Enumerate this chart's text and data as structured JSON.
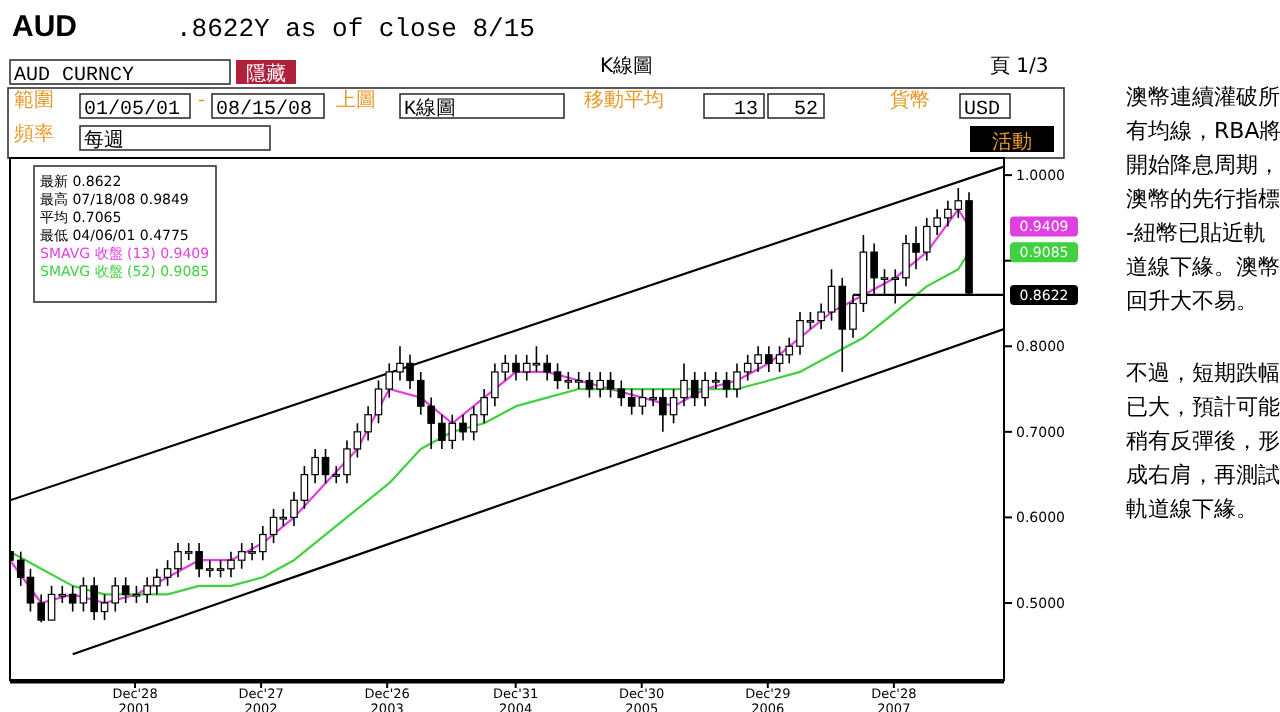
{
  "chart_data": {
    "type": "candlestick",
    "title": "AUD",
    "subtitle": ".8622Y as of close 8/15",
    "color": "#000000",
    "x": [
      "2001-01",
      "2001-02",
      "2001-03",
      "2001-04",
      "2001-05",
      "2001-06",
      "2001-07",
      "2001-08",
      "2001-09",
      "2001-10",
      "2001-11",
      "2001-12",
      "2002-01",
      "2002-02",
      "2002-03",
      "2002-04",
      "2002-05",
      "2002-06",
      "2002-07",
      "2002-08",
      "2002-09",
      "2002-10",
      "2002-11",
      "2002-12",
      "2003-01",
      "2003-02",
      "2003-03",
      "2003-04",
      "2003-05",
      "2003-06",
      "2003-07",
      "2003-08",
      "2003-09",
      "2003-10",
      "2003-11",
      "2003-12",
      "2004-01",
      "2004-02",
      "2004-03",
      "2004-04",
      "2004-05",
      "2004-06",
      "2004-07",
      "2004-08",
      "2004-09",
      "2004-10",
      "2004-11",
      "2004-12",
      "2005-01",
      "2005-02",
      "2005-03",
      "2005-04",
      "2005-05",
      "2005-06",
      "2005-07",
      "2005-08",
      "2005-09",
      "2005-10",
      "2005-11",
      "2005-12",
      "2006-01",
      "2006-02",
      "2006-03",
      "2006-04",
      "2006-05",
      "2006-06",
      "2006-07",
      "2006-08",
      "2006-09",
      "2006-10",
      "2006-11",
      "2006-12",
      "2007-01",
      "2007-02",
      "2007-03",
      "2007-04",
      "2007-05",
      "2007-06",
      "2007-07",
      "2007-08",
      "2007-09",
      "2007-10",
      "2007-11",
      "2007-12",
      "2008-01",
      "2008-02",
      "2008-03",
      "2008-04",
      "2008-05",
      "2008-06",
      "2008-07",
      "2008-08"
    ],
    "ohlc": [
      [
        0.56,
        0.57,
        0.54,
        0.55
      ],
      [
        0.55,
        0.56,
        0.52,
        0.53
      ],
      [
        0.53,
        0.54,
        0.49,
        0.5
      ],
      [
        0.5,
        0.51,
        0.4775,
        0.48
      ],
      [
        0.48,
        0.52,
        0.48,
        0.51
      ],
      [
        0.51,
        0.52,
        0.5,
        0.51
      ],
      [
        0.51,
        0.52,
        0.49,
        0.5
      ],
      [
        0.5,
        0.53,
        0.49,
        0.52
      ],
      [
        0.52,
        0.53,
        0.48,
        0.49
      ],
      [
        0.49,
        0.51,
        0.48,
        0.5
      ],
      [
        0.5,
        0.53,
        0.49,
        0.52
      ],
      [
        0.52,
        0.53,
        0.5,
        0.51
      ],
      [
        0.51,
        0.52,
        0.5,
        0.51
      ],
      [
        0.51,
        0.53,
        0.5,
        0.52
      ],
      [
        0.52,
        0.54,
        0.51,
        0.53
      ],
      [
        0.53,
        0.55,
        0.52,
        0.54
      ],
      [
        0.54,
        0.57,
        0.53,
        0.56
      ],
      [
        0.56,
        0.57,
        0.55,
        0.56
      ],
      [
        0.56,
        0.57,
        0.53,
        0.54
      ],
      [
        0.54,
        0.55,
        0.53,
        0.54
      ],
      [
        0.54,
        0.55,
        0.53,
        0.54
      ],
      [
        0.54,
        0.56,
        0.53,
        0.55
      ],
      [
        0.55,
        0.57,
        0.54,
        0.56
      ],
      [
        0.56,
        0.57,
        0.55,
        0.56
      ],
      [
        0.56,
        0.59,
        0.55,
        0.58
      ],
      [
        0.58,
        0.61,
        0.57,
        0.6
      ],
      [
        0.6,
        0.61,
        0.59,
        0.6
      ],
      [
        0.6,
        0.63,
        0.59,
        0.62
      ],
      [
        0.62,
        0.66,
        0.61,
        0.65
      ],
      [
        0.65,
        0.68,
        0.64,
        0.67
      ],
      [
        0.67,
        0.68,
        0.64,
        0.65
      ],
      [
        0.65,
        0.66,
        0.64,
        0.65
      ],
      [
        0.65,
        0.69,
        0.64,
        0.68
      ],
      [
        0.68,
        0.71,
        0.67,
        0.7
      ],
      [
        0.7,
        0.73,
        0.69,
        0.72
      ],
      [
        0.72,
        0.76,
        0.71,
        0.75
      ],
      [
        0.75,
        0.78,
        0.74,
        0.77
      ],
      [
        0.77,
        0.8,
        0.76,
        0.78
      ],
      [
        0.78,
        0.79,
        0.75,
        0.76
      ],
      [
        0.76,
        0.77,
        0.72,
        0.73
      ],
      [
        0.73,
        0.74,
        0.68,
        0.71
      ],
      [
        0.71,
        0.72,
        0.68,
        0.69
      ],
      [
        0.69,
        0.72,
        0.68,
        0.71
      ],
      [
        0.71,
        0.72,
        0.69,
        0.7
      ],
      [
        0.7,
        0.73,
        0.69,
        0.72
      ],
      [
        0.72,
        0.75,
        0.71,
        0.74
      ],
      [
        0.74,
        0.78,
        0.73,
        0.77
      ],
      [
        0.77,
        0.79,
        0.76,
        0.78
      ],
      [
        0.78,
        0.79,
        0.76,
        0.77
      ],
      [
        0.77,
        0.79,
        0.76,
        0.78
      ],
      [
        0.78,
        0.8,
        0.77,
        0.78
      ],
      [
        0.78,
        0.79,
        0.76,
        0.77
      ],
      [
        0.77,
        0.78,
        0.75,
        0.76
      ],
      [
        0.76,
        0.77,
        0.75,
        0.76
      ],
      [
        0.76,
        0.77,
        0.75,
        0.76
      ],
      [
        0.76,
        0.77,
        0.74,
        0.75
      ],
      [
        0.75,
        0.77,
        0.74,
        0.76
      ],
      [
        0.76,
        0.77,
        0.74,
        0.75
      ],
      [
        0.75,
        0.76,
        0.73,
        0.74
      ],
      [
        0.74,
        0.75,
        0.72,
        0.73
      ],
      [
        0.73,
        0.75,
        0.72,
        0.74
      ],
      [
        0.74,
        0.75,
        0.73,
        0.74
      ],
      [
        0.74,
        0.75,
        0.7,
        0.72
      ],
      [
        0.72,
        0.75,
        0.71,
        0.74
      ],
      [
        0.74,
        0.78,
        0.73,
        0.76
      ],
      [
        0.76,
        0.77,
        0.73,
        0.74
      ],
      [
        0.74,
        0.77,
        0.73,
        0.76
      ],
      [
        0.76,
        0.77,
        0.75,
        0.76
      ],
      [
        0.76,
        0.77,
        0.74,
        0.75
      ],
      [
        0.75,
        0.78,
        0.74,
        0.77
      ],
      [
        0.77,
        0.79,
        0.76,
        0.78
      ],
      [
        0.78,
        0.8,
        0.77,
        0.79
      ],
      [
        0.79,
        0.8,
        0.77,
        0.78
      ],
      [
        0.78,
        0.8,
        0.77,
        0.79
      ],
      [
        0.79,
        0.81,
        0.78,
        0.8
      ],
      [
        0.8,
        0.84,
        0.79,
        0.83
      ],
      [
        0.83,
        0.84,
        0.82,
        0.83
      ],
      [
        0.83,
        0.85,
        0.82,
        0.84
      ],
      [
        0.84,
        0.89,
        0.83,
        0.87
      ],
      [
        0.87,
        0.88,
        0.77,
        0.82
      ],
      [
        0.82,
        0.86,
        0.81,
        0.85
      ],
      [
        0.85,
        0.93,
        0.84,
        0.91
      ],
      [
        0.91,
        0.92,
        0.86,
        0.88
      ],
      [
        0.88,
        0.89,
        0.86,
        0.88
      ],
      [
        0.88,
        0.89,
        0.85,
        0.88
      ],
      [
        0.88,
        0.93,
        0.87,
        0.92
      ],
      [
        0.92,
        0.94,
        0.89,
        0.91
      ],
      [
        0.91,
        0.95,
        0.9,
        0.94
      ],
      [
        0.94,
        0.96,
        0.93,
        0.95
      ],
      [
        0.95,
        0.97,
        0.94,
        0.96
      ],
      [
        0.96,
        0.9849,
        0.95,
        0.97
      ],
      [
        0.97,
        0.98,
        0.86,
        0.8622
      ]
    ],
    "series": [
      {
        "type": "line",
        "name": "SMAVG 收盤 (13) 0.9409",
        "color": "#e040e0",
        "x": [
          "2001-01",
          "2001-04",
          "2001-07",
          "2001-10",
          "2002-01",
          "2002-04",
          "2002-07",
          "2002-10",
          "2003-01",
          "2003-04",
          "2003-07",
          "2003-10",
          "2004-01",
          "2004-04",
          "2004-07",
          "2004-10",
          "2005-01",
          "2005-04",
          "2005-07",
          "2005-10",
          "2006-01",
          "2006-04",
          "2006-07",
          "2006-10",
          "2007-01",
          "2007-04",
          "2007-07",
          "2007-10",
          "2008-01",
          "2008-04",
          "2008-07",
          "2008-08"
        ],
        "values": [
          0.55,
          0.5,
          0.51,
          0.5,
          0.51,
          0.53,
          0.55,
          0.55,
          0.57,
          0.6,
          0.64,
          0.68,
          0.75,
          0.74,
          0.71,
          0.74,
          0.77,
          0.77,
          0.76,
          0.75,
          0.74,
          0.73,
          0.75,
          0.76,
          0.78,
          0.81,
          0.84,
          0.86,
          0.88,
          0.91,
          0.96,
          0.94
        ]
      },
      {
        "type": "line",
        "name": "SMAVG 收盤 (52) 0.9085",
        "color": "#40d040",
        "x": [
          "2001-01",
          "2001-04",
          "2001-07",
          "2001-10",
          "2002-01",
          "2002-04",
          "2002-07",
          "2002-10",
          "2003-01",
          "2003-04",
          "2003-07",
          "2003-10",
          "2004-01",
          "2004-04",
          "2004-07",
          "2004-10",
          "2005-01",
          "2005-04",
          "2005-07",
          "2005-10",
          "2006-01",
          "2006-04",
          "2006-07",
          "2006-10",
          "2007-01",
          "2007-04",
          "2007-07",
          "2007-10",
          "2008-01",
          "2008-04",
          "2008-07",
          "2008-08"
        ],
        "values": [
          0.56,
          0.54,
          0.52,
          0.51,
          0.51,
          0.51,
          0.52,
          0.52,
          0.53,
          0.55,
          0.58,
          0.61,
          0.64,
          0.68,
          0.7,
          0.71,
          0.73,
          0.74,
          0.75,
          0.75,
          0.75,
          0.75,
          0.75,
          0.75,
          0.76,
          0.77,
          0.79,
          0.81,
          0.84,
          0.87,
          0.89,
          0.91
        ]
      },
      {
        "type": "line",
        "color": "#000000",
        "x": [
          "2001-01-01",
          "2008-11-10"
        ],
        "values": [
          0.62,
          1.01
        ]
      },
      {
        "type": "line",
        "color": "#000000",
        "x": [
          "2001-07-01",
          "2008-11-10"
        ],
        "values": [
          0.44,
          0.82
        ]
      },
      {
        "type": "line",
        "color": "#000000",
        "x": [
          "2007-09-01",
          "2008-11-10"
        ],
        "values": [
          0.86,
          0.86
        ]
      }
    ],
    "xlim": [
      "2001-01-01",
      "2008-11-10"
    ],
    "xticks": [
      {
        "value": "2001-12-28",
        "label": "Dec'28 2001"
      },
      {
        "value": "2002-12-27",
        "label": "Dec'27 2002"
      },
      {
        "value": "2003-12-26",
        "label": "Dec'26 2003"
      },
      {
        "value": "2004-12-31",
        "label": "Dec'31 2004"
      },
      {
        "value": "2005-12-30",
        "label": "Dec'30 2005"
      },
      {
        "value": "2006-12-29",
        "label": "Dec'29 2006"
      },
      {
        "value": "2007-12-28",
        "label": "Dec'28 2007"
      }
    ],
    "ylim": [
      0.41,
      1.02
    ],
    "yticks": [
      {
        "value": 0.5,
        "label": "0.5000"
      },
      {
        "value": 0.6,
        "label": "0.6000"
      },
      {
        "value": 0.7,
        "label": "0.7000"
      },
      {
        "value": 0.8,
        "label": "0.8000"
      },
      {
        "value": 0.9,
        "label": null
      },
      {
        "value": 1.0,
        "label": "1.0000"
      }
    ],
    "grid": false,
    "legend": "top left",
    "annotations": [
      "AUD CURNCY",
      "隱藏",
      "K線圖",
      "頁 1/3",
      "範圍",
      "01/05/01",
      "-",
      "08/15/08",
      "上圖",
      "K線圖",
      "移動平均",
      "13",
      "52",
      "貨幣",
      "USD",
      "頻率",
      "每週",
      "活動",
      "最新 0.8622",
      "最高 07/18/08 0.9849",
      "平均 0.7065",
      "最低 04/06/01 0.4775",
      "澳幣連續灌破所有均線，RBA將開始降息周期，澳幣的先行指標-紐幣已貼近軌道線下緣。澳幣回升大不易。",
      "不過，短期跌幅已大，預計可能稍有反彈後，形成右肩，再測試軌道線下緣。",
      "0.9409",
      "0.9085",
      "0.8622"
    ]
  }
}
